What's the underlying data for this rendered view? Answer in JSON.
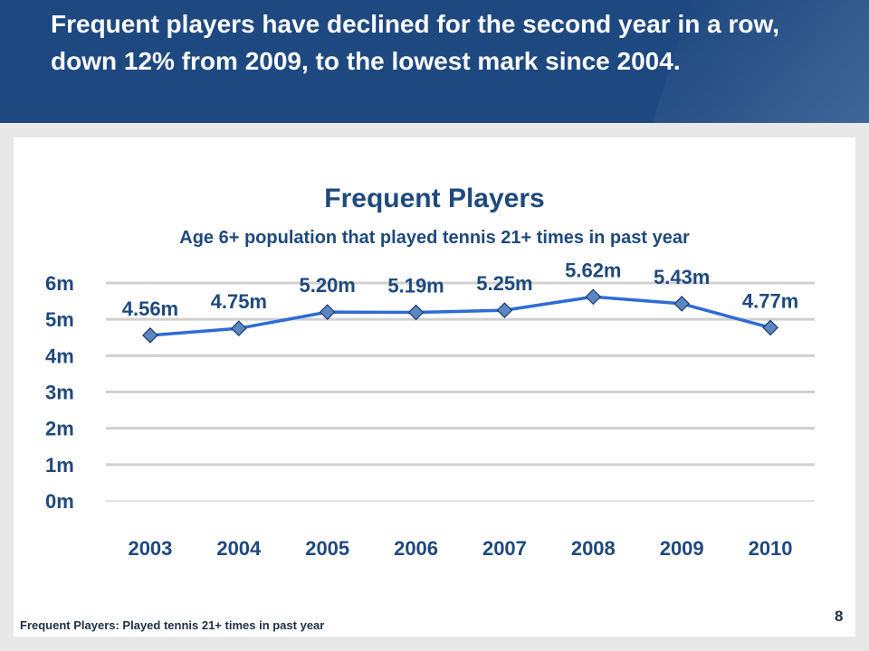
{
  "slide": {
    "headline": "Frequent players have declined for the second year in a row,  down 12% from 2009, to the lowest mark since 2004.",
    "footnote": "Frequent Players:  Played tennis 21+ times in past year",
    "page_number": "8"
  },
  "colors": {
    "header": "#1e4880",
    "title": "#1f497d",
    "line": "#2f6bd6",
    "marker": "#5b86c4",
    "axis_text": "#1f497d"
  },
  "chart_data": {
    "type": "line",
    "title": "Frequent Players",
    "subtitle": "Age 6+ population that played tennis 21+ times in past year",
    "categories": [
      "2003",
      "2004",
      "2005",
      "2006",
      "2007",
      "2008",
      "2009",
      "2010"
    ],
    "values": [
      4.56,
      4.75,
      5.2,
      5.19,
      5.25,
      5.62,
      5.43,
      4.77
    ],
    "data_labels": [
      "4.56m",
      "4.75m",
      "5.20m",
      "5.19m",
      "5.25m",
      "5.62m",
      "5.43m",
      "4.77m"
    ],
    "y_ticks": [
      "0m",
      "1m",
      "2m",
      "3m",
      "4m",
      "5m",
      "6m"
    ],
    "ylim": [
      0,
      6
    ],
    "grid": true,
    "marker": "diamond",
    "legend": "none"
  }
}
